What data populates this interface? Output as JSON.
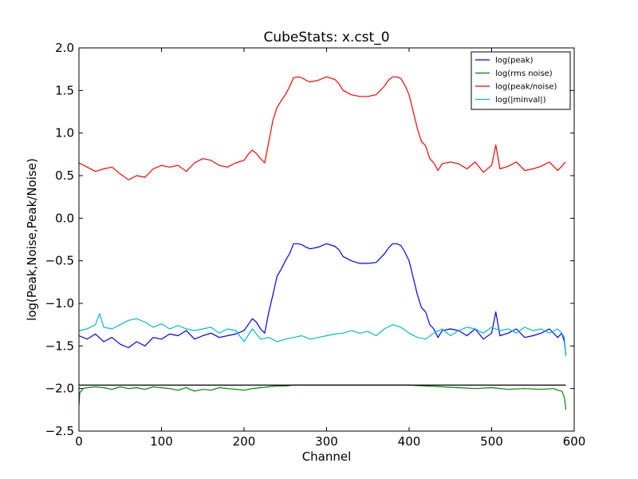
{
  "chart_data": {
    "type": "line",
    "title": "CubeStats: x.cst_0",
    "xlabel": "Channel",
    "ylabel": "log(Peak,Noise,Peak/Noise)",
    "xlim": [
      0,
      600
    ],
    "ylim": [
      -2.5,
      2.0
    ],
    "xticks": [
      0,
      100,
      200,
      300,
      400,
      500,
      600
    ],
    "yticks": [
      -2.5,
      -2.0,
      -1.5,
      -1.0,
      -0.5,
      0.0,
      0.5,
      1.0,
      1.5,
      2.0
    ],
    "xtick_labels": [
      "0",
      "100",
      "200",
      "300",
      "400",
      "500",
      "600"
    ],
    "ytick_labels": [
      "−2.5",
      "−2.0",
      "−1.5",
      "−1.0",
      "−0.5",
      "0.0",
      "0.5",
      "1.0",
      "1.5",
      "2.0"
    ],
    "grid": false,
    "legend_position": "top-right",
    "series": [
      {
        "name": "log(peak)",
        "color": "#0000ff",
        "x": [
          0,
          10,
          20,
          30,
          40,
          50,
          60,
          70,
          80,
          90,
          100,
          110,
          120,
          130,
          140,
          150,
          160,
          170,
          180,
          190,
          200,
          205,
          210,
          215,
          220,
          225,
          230,
          235,
          240,
          245,
          250,
          255,
          260,
          265,
          270,
          275,
          280,
          290,
          300,
          310,
          315,
          320,
          330,
          340,
          350,
          360,
          370,
          375,
          380,
          385,
          390,
          395,
          400,
          405,
          410,
          415,
          420,
          425,
          430,
          435,
          440,
          450,
          460,
          470,
          480,
          490,
          500,
          505,
          510,
          520,
          530,
          540,
          550,
          560,
          570,
          580,
          585,
          588,
          590
        ],
        "y": [
          -1.38,
          -1.42,
          -1.36,
          -1.45,
          -1.4,
          -1.48,
          -1.52,
          -1.45,
          -1.5,
          -1.4,
          -1.42,
          -1.36,
          -1.38,
          -1.32,
          -1.42,
          -1.38,
          -1.35,
          -1.4,
          -1.38,
          -1.36,
          -1.32,
          -1.25,
          -1.18,
          -1.22,
          -1.3,
          -1.35,
          -1.1,
          -0.9,
          -0.68,
          -0.6,
          -0.5,
          -0.42,
          -0.3,
          -0.3,
          -0.31,
          -0.34,
          -0.36,
          -0.34,
          -0.3,
          -0.33,
          -0.37,
          -0.45,
          -0.5,
          -0.53,
          -0.53,
          -0.52,
          -0.42,
          -0.35,
          -0.3,
          -0.3,
          -0.32,
          -0.4,
          -0.5,
          -0.7,
          -0.9,
          -1.05,
          -1.1,
          -1.25,
          -1.3,
          -1.4,
          -1.32,
          -1.3,
          -1.32,
          -1.38,
          -1.3,
          -1.42,
          -1.35,
          -1.1,
          -1.38,
          -1.35,
          -1.3,
          -1.4,
          -1.38,
          -1.35,
          -1.3,
          -1.4,
          -1.35,
          -1.45,
          -1.6
        ]
      },
      {
        "name": "log(rms noise)",
        "color": "#008000",
        "x": [
          0,
          1,
          5,
          10,
          20,
          30,
          40,
          50,
          60,
          70,
          80,
          90,
          100,
          110,
          120,
          130,
          140,
          150,
          160,
          170,
          180,
          190,
          200,
          210,
          220,
          230,
          240,
          250,
          260,
          280,
          300,
          320,
          340,
          360,
          380,
          400,
          420,
          440,
          460,
          480,
          500,
          520,
          540,
          560,
          575,
          580,
          585,
          588,
          590
        ],
        "y": [
          -2.2,
          -2.05,
          -2.0,
          -1.99,
          -1.98,
          -1.99,
          -2.01,
          -1.98,
          -2.0,
          -1.99,
          -2.01,
          -1.98,
          -1.99,
          -2.0,
          -2.02,
          -1.99,
          -2.03,
          -2.01,
          -2.02,
          -1.99,
          -2.0,
          -2.01,
          -2.02,
          -2.0,
          -1.99,
          -1.98,
          -1.97,
          -1.97,
          -1.96,
          -1.96,
          -1.96,
          -1.96,
          -1.96,
          -1.96,
          -1.96,
          -1.96,
          -1.97,
          -1.98,
          -1.99,
          -2.0,
          -1.99,
          -2.01,
          -2.0,
          -2.01,
          -2.0,
          -2.02,
          -2.03,
          -2.1,
          -2.25
        ]
      },
      {
        "name": "log(peak/noise)",
        "color": "#ff0000",
        "x": [
          0,
          10,
          20,
          30,
          40,
          50,
          60,
          70,
          80,
          90,
          100,
          110,
          120,
          130,
          140,
          150,
          160,
          170,
          180,
          190,
          200,
          205,
          210,
          215,
          220,
          225,
          230,
          235,
          240,
          245,
          250,
          255,
          260,
          265,
          270,
          275,
          280,
          290,
          300,
          310,
          315,
          320,
          330,
          340,
          350,
          360,
          370,
          375,
          380,
          385,
          390,
          395,
          400,
          405,
          410,
          415,
          420,
          425,
          430,
          435,
          440,
          450,
          460,
          470,
          480,
          490,
          500,
          505,
          510,
          520,
          530,
          540,
          550,
          560,
          570,
          580,
          585,
          588,
          590
        ],
        "y": [
          0.65,
          0.6,
          0.55,
          0.58,
          0.6,
          0.52,
          0.45,
          0.5,
          0.48,
          0.58,
          0.62,
          0.6,
          0.62,
          0.55,
          0.65,
          0.7,
          0.68,
          0.62,
          0.6,
          0.65,
          0.68,
          0.75,
          0.8,
          0.76,
          0.7,
          0.65,
          0.9,
          1.15,
          1.3,
          1.38,
          1.45,
          1.54,
          1.65,
          1.66,
          1.65,
          1.62,
          1.6,
          1.62,
          1.66,
          1.63,
          1.58,
          1.5,
          1.45,
          1.43,
          1.43,
          1.45,
          1.55,
          1.62,
          1.66,
          1.66,
          1.64,
          1.56,
          1.45,
          1.25,
          1.05,
          0.9,
          0.85,
          0.7,
          0.65,
          0.56,
          0.64,
          0.66,
          0.64,
          0.58,
          0.66,
          0.54,
          0.62,
          0.86,
          0.58,
          0.61,
          0.66,
          0.56,
          0.58,
          0.61,
          0.66,
          0.56,
          0.61,
          0.65,
          0.65
        ]
      },
      {
        "name": "log(|minval|)",
        "color": "#00bfbf",
        "x": [
          0,
          10,
          20,
          25,
          30,
          40,
          50,
          60,
          70,
          80,
          90,
          100,
          110,
          120,
          130,
          140,
          150,
          160,
          170,
          180,
          190,
          200,
          210,
          220,
          230,
          240,
          250,
          260,
          270,
          280,
          290,
          300,
          310,
          320,
          330,
          340,
          350,
          360,
          370,
          380,
          390,
          400,
          410,
          420,
          430,
          440,
          450,
          460,
          470,
          480,
          490,
          500,
          510,
          520,
          530,
          540,
          550,
          560,
          570,
          580,
          585,
          588,
          590
        ],
        "y": [
          -1.32,
          -1.3,
          -1.25,
          -1.12,
          -1.28,
          -1.3,
          -1.25,
          -1.2,
          -1.18,
          -1.22,
          -1.28,
          -1.24,
          -1.3,
          -1.26,
          -1.3,
          -1.32,
          -1.3,
          -1.28,
          -1.35,
          -1.3,
          -1.32,
          -1.45,
          -1.3,
          -1.42,
          -1.4,
          -1.45,
          -1.42,
          -1.4,
          -1.38,
          -1.42,
          -1.4,
          -1.38,
          -1.36,
          -1.35,
          -1.32,
          -1.35,
          -1.33,
          -1.38,
          -1.3,
          -1.25,
          -1.28,
          -1.35,
          -1.4,
          -1.42,
          -1.35,
          -1.3,
          -1.38,
          -1.32,
          -1.28,
          -1.3,
          -1.35,
          -1.28,
          -1.32,
          -1.3,
          -1.35,
          -1.28,
          -1.32,
          -1.3,
          -1.35,
          -1.3,
          -1.35,
          -1.4,
          -1.62
        ]
      },
      {
        "name": "",
        "color": "#000000",
        "x": [
          0,
          590
        ],
        "y": [
          -1.96,
          -1.96
        ]
      }
    ]
  }
}
